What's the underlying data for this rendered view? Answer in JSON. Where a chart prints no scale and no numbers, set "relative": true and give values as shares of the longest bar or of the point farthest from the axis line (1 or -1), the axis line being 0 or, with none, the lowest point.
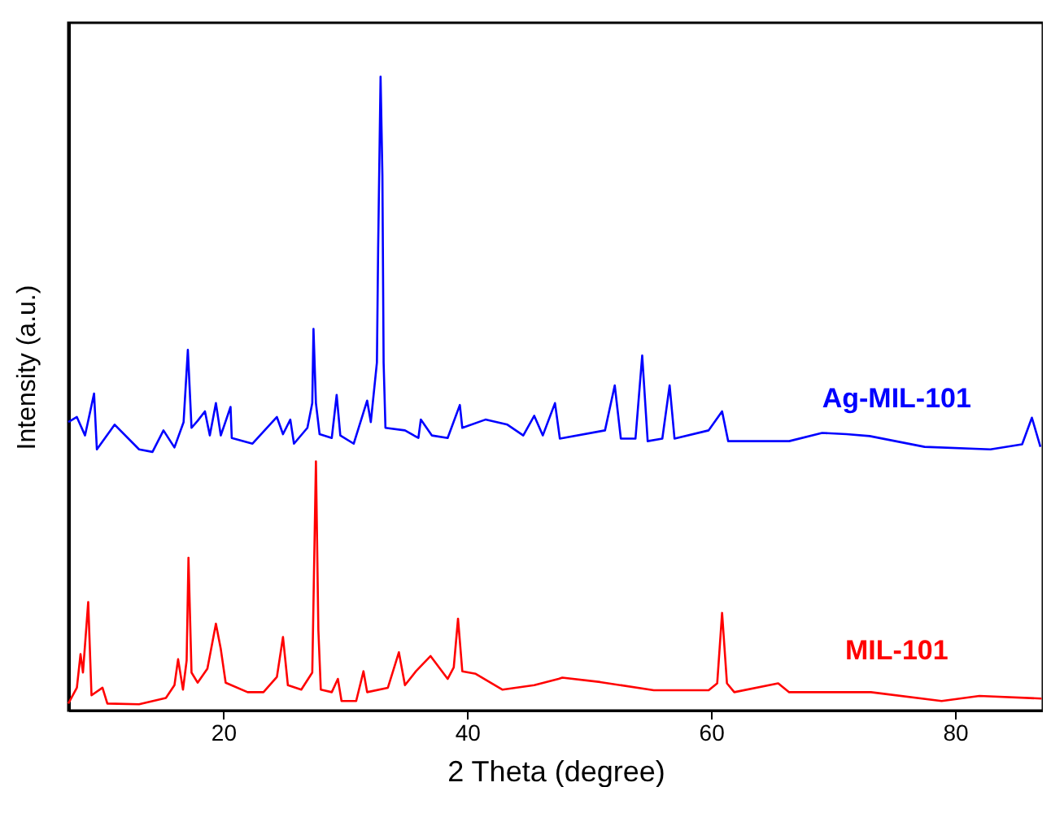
{
  "chart_data": {
    "type": "line",
    "xlabel": "2 Theta (degree)",
    "ylabel": "Intensity (a.u.)",
    "relative": true,
    "xlim": [
      7.3,
      87.2
    ],
    "xticks": [
      20,
      40,
      60,
      80
    ],
    "legend": false,
    "marker": "none",
    "line_style": "solid",
    "series": [
      {
        "name": "Ag-MIL-101",
        "color": "#0000ff",
        "x": [
          7.3,
          8.0,
          8.67,
          9.41,
          9.64,
          11.1,
          13.1,
          14.2,
          15.1,
          16.0,
          16.75,
          17.1,
          17.4,
          17.9,
          18.5,
          18.9,
          19.4,
          19.8,
          20.6,
          20.7,
          22.4,
          24.4,
          24.9,
          25.5,
          25.8,
          26.9,
          27.3,
          27.4,
          27.6,
          27.9,
          28.9,
          29.3,
          29.6,
          30.7,
          31.8,
          32.1,
          32.6,
          32.7,
          32.9,
          33.05,
          33.15,
          33.3,
          34.9,
          36.0,
          36.2,
          37.1,
          38.4,
          39.4,
          39.6,
          41.5,
          43.3,
          44.6,
          45.5,
          46.2,
          47.2,
          47.6,
          51.3,
          52.1,
          52.6,
          53.8,
          54.35,
          54.8,
          56.0,
          56.6,
          57.0,
          59.8,
          60.9,
          61.4,
          66.4,
          69.1,
          71.1,
          73.0,
          77.5,
          82.9,
          85.5,
          86.3,
          87.0
        ],
        "values": [
          0.455,
          0.463,
          0.434,
          0.5,
          0.412,
          0.451,
          0.412,
          0.408,
          0.442,
          0.415,
          0.455,
          0.569,
          0.446,
          0.457,
          0.472,
          0.434,
          0.485,
          0.434,
          0.479,
          0.43,
          0.421,
          0.463,
          0.436,
          0.459,
          0.421,
          0.446,
          0.485,
          0.602,
          0.485,
          0.436,
          0.43,
          0.498,
          0.434,
          0.421,
          0.489,
          0.455,
          0.549,
          0.728,
          1.0,
          0.844,
          0.549,
          0.446,
          0.442,
          0.43,
          0.459,
          0.434,
          0.43,
          0.482,
          0.446,
          0.459,
          0.451,
          0.434,
          0.465,
          0.434,
          0.485,
          0.429,
          0.442,
          0.513,
          0.429,
          0.429,
          0.56,
          0.425,
          0.429,
          0.513,
          0.429,
          0.442,
          0.472,
          0.425,
          0.425,
          0.438,
          0.436,
          0.433,
          0.416,
          0.412,
          0.42,
          0.462,
          0.416
        ]
      },
      {
        "name": "MIL-101",
        "color": "#ff0000",
        "x": [
          7.3,
          8.0,
          8.3,
          8.5,
          8.93,
          9.2,
          10.1,
          10.5,
          13.1,
          15.3,
          16.0,
          16.3,
          16.7,
          17.0,
          17.15,
          17.4,
          17.9,
          18.7,
          19.4,
          19.8,
          20.2,
          22.0,
          23.3,
          24.4,
          24.9,
          25.3,
          26.4,
          27.3,
          27.6,
          27.8,
          28.0,
          28.9,
          29.4,
          29.7,
          30.9,
          31.5,
          31.8,
          33.5,
          34.4,
          34.9,
          35.8,
          37.0,
          38.4,
          38.9,
          39.25,
          39.6,
          40.7,
          42.9,
          45.5,
          47.5,
          47.8,
          50.9,
          55.3,
          59.8,
          60.5,
          60.9,
          61.3,
          61.9,
          65.5,
          66.4,
          73.1,
          78.9,
          82.0,
          87.1
        ],
        "values": [
          0.011,
          0.036,
          0.089,
          0.06,
          0.171,
          0.024,
          0.036,
          0.011,
          0.01,
          0.02,
          0.04,
          0.081,
          0.033,
          0.079,
          0.241,
          0.06,
          0.044,
          0.066,
          0.137,
          0.097,
          0.044,
          0.029,
          0.029,
          0.053,
          0.116,
          0.04,
          0.033,
          0.06,
          0.393,
          0.127,
          0.033,
          0.029,
          0.05,
          0.015,
          0.015,
          0.062,
          0.029,
          0.036,
          0.092,
          0.04,
          0.062,
          0.086,
          0.05,
          0.068,
          0.145,
          0.062,
          0.058,
          0.033,
          0.04,
          0.05,
          0.052,
          0.045,
          0.032,
          0.032,
          0.043,
          0.154,
          0.043,
          0.029,
          0.043,
          0.029,
          0.029,
          0.015,
          0.023,
          0.019
        ]
      }
    ]
  }
}
